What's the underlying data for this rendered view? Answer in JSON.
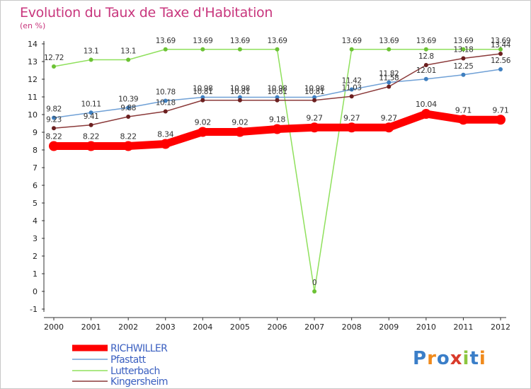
{
  "header": {
    "title": "Evolution du Taux de Taxe d'Habitation",
    "unit": "(en %)"
  },
  "logo": {
    "text": "Proxiti",
    "colors": [
      "#3a7ec8",
      "#f08a1c",
      "#3a7ec8",
      "#d93b2b",
      "#8cc63f",
      "#3a7ec8",
      "#f08a1c"
    ]
  },
  "chart_data": {
    "type": "line",
    "title": "Evolution du Taux de Taxe d'Habitation",
    "ylabel": "(en %)",
    "xlabel": "",
    "x": [
      "2000",
      "2001",
      "2002",
      "2003",
      "2004",
      "2005",
      "2006",
      "2007",
      "2008",
      "2009",
      "2010",
      "2011",
      "2012"
    ],
    "ylim": [
      -1,
      14
    ],
    "yticks": [
      "-1",
      "0",
      "1",
      "2",
      "3",
      "4",
      "5",
      "6",
      "7",
      "8",
      "9",
      "10",
      "11",
      "12",
      "13",
      "14"
    ],
    "grid": false,
    "legend_position": "bottom-left",
    "series": [
      {
        "name": "RICHWILLER",
        "color": "#ff0000",
        "values": [
          8.22,
          8.22,
          8.22,
          8.34,
          9.02,
          9.02,
          9.18,
          9.27,
          9.27,
          9.27,
          10.04,
          9.71,
          9.71
        ],
        "labels": [
          "8.22",
          "8.22",
          "8.22",
          "8.34",
          "9.02",
          "9.02",
          "9.18",
          "9.27",
          "9.27",
          "9.27",
          "10.04",
          "9.71",
          "9.71"
        ]
      },
      {
        "name": "Pfastatt",
        "color": "#6fa0d6",
        "marker": "#3f7fbf",
        "values": [
          9.82,
          10.11,
          10.39,
          10.78,
          10.98,
          10.98,
          10.98,
          10.98,
          11.42,
          11.82,
          12.01,
          12.25,
          12.56
        ],
        "labels": [
          "9.82",
          "10.11",
          "10.39",
          "10.78",
          "10.98",
          "10.98",
          "10.98",
          "10.98",
          "11.42",
          "11.82",
          "12.01",
          "12.25",
          "12.56"
        ]
      },
      {
        "name": "Lutterbach",
        "color": "#8fe05c",
        "marker": "#6cc235",
        "values": [
          12.72,
          13.1,
          13.1,
          13.69,
          13.69,
          13.69,
          13.69,
          0,
          13.69,
          13.69,
          13.69,
          13.69,
          13.69
        ],
        "labels": [
          "12.72",
          "13.1",
          "13.1",
          "13.69",
          "13.69",
          "13.69",
          "13.69",
          "0",
          "13.69",
          "13.69",
          "13.69",
          "13.69",
          "13.69"
        ]
      },
      {
        "name": "Kingersheim",
        "color": "#8b3a3a",
        "marker": "#6b1f1f",
        "values": [
          9.23,
          9.41,
          9.88,
          10.18,
          10.81,
          10.81,
          10.81,
          10.81,
          11.03,
          11.58,
          12.8,
          13.18,
          13.44
        ],
        "labels": [
          "9.23",
          "9.41",
          "9.88",
          "10.18",
          "10.81",
          "10.81",
          "10.81",
          "10.81",
          "11.03",
          "11.58",
          "12.8",
          "13.18",
          "13.44"
        ]
      }
    ]
  }
}
